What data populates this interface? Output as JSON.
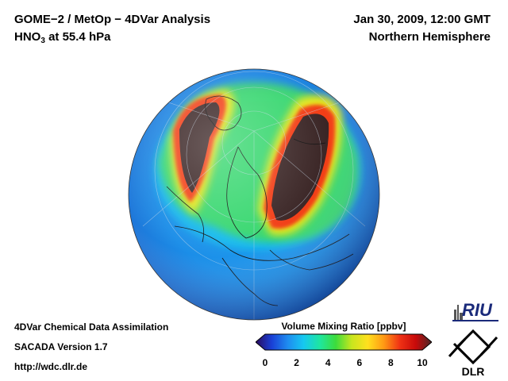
{
  "header": {
    "title_line1": "GOME−2 / MetOp − 4DVar Analysis",
    "species_main": "HNO",
    "species_sub": "3",
    "species_rest": " at 55.4 hPa",
    "date": "Jan 30, 2009, 12:00 GMT",
    "region": "Northern Hemisphere"
  },
  "footer": {
    "line1": "4DVar Chemical Data Assimilation",
    "line2": "SACADA Version 1.7",
    "line3": "http://wdc.dlr.de"
  },
  "colorbar": {
    "title": "Volume Mixing Ratio [ppbv]",
    "ticks": [
      "0",
      "2",
      "4",
      "6",
      "8",
      "10"
    ],
    "min": 0,
    "max": 10,
    "colors": [
      "#2a0a5e",
      "#1a3fd6",
      "#1e8cf0",
      "#16c8f0",
      "#1ee6a0",
      "#3cdc3c",
      "#c8e61e",
      "#ffe01e",
      "#ff9a14",
      "#f03214",
      "#c80a0a",
      "#4a2626"
    ]
  },
  "logos": {
    "riu_text": "RIU",
    "dlr_text": "DLR"
  },
  "map": {
    "ocean_color": "#1e9bf0",
    "high_color": "#3a2525"
  }
}
